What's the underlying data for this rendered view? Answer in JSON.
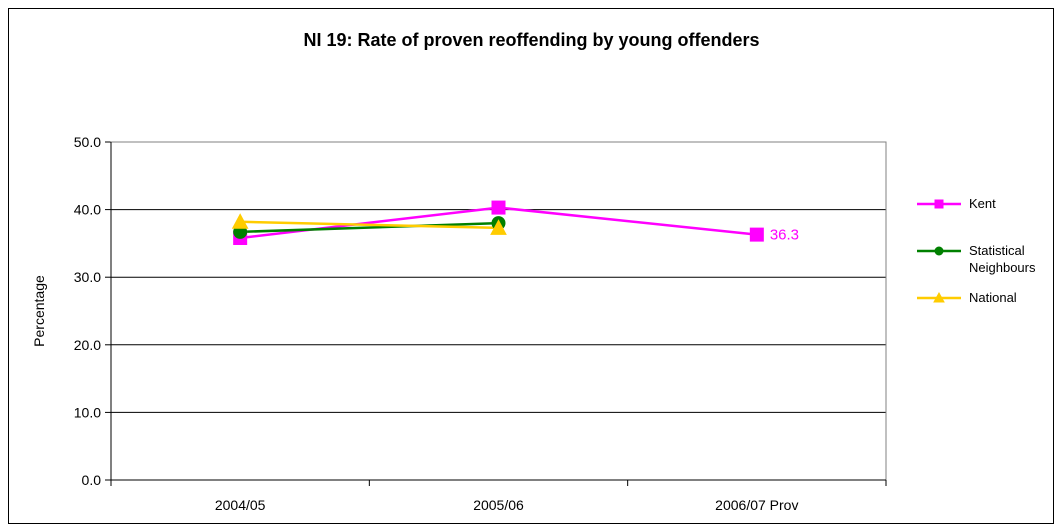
{
  "chart_data": {
    "type": "line",
    "title": "NI 19: Rate of proven reoffending by young offenders",
    "xlabel": "",
    "ylabel": "Percentage",
    "categories": [
      "2004/05",
      "2005/06",
      "2006/07 Prov"
    ],
    "ylim": [
      0,
      50
    ],
    "yticks": [
      "0.0",
      "10.0",
      "20.0",
      "30.0",
      "40.0",
      "50.0"
    ],
    "grid": true,
    "legend_position": "right",
    "series": [
      {
        "name": "Kent",
        "values": [
          35.8,
          40.3,
          36.3
        ],
        "color": "#ff00ff",
        "marker": "square"
      },
      {
        "name": "Statistical Neighbours",
        "values": [
          36.7,
          38.0,
          null
        ],
        "color": "#008000",
        "marker": "circle"
      },
      {
        "name": "National",
        "values": [
          38.2,
          37.3,
          null
        ],
        "color": "#ffcc00",
        "marker": "triangle"
      }
    ],
    "annotations": [
      {
        "series": "Kent",
        "category": "2006/07 Prov",
        "text": "36.3",
        "color": "#ff00ff"
      }
    ]
  }
}
